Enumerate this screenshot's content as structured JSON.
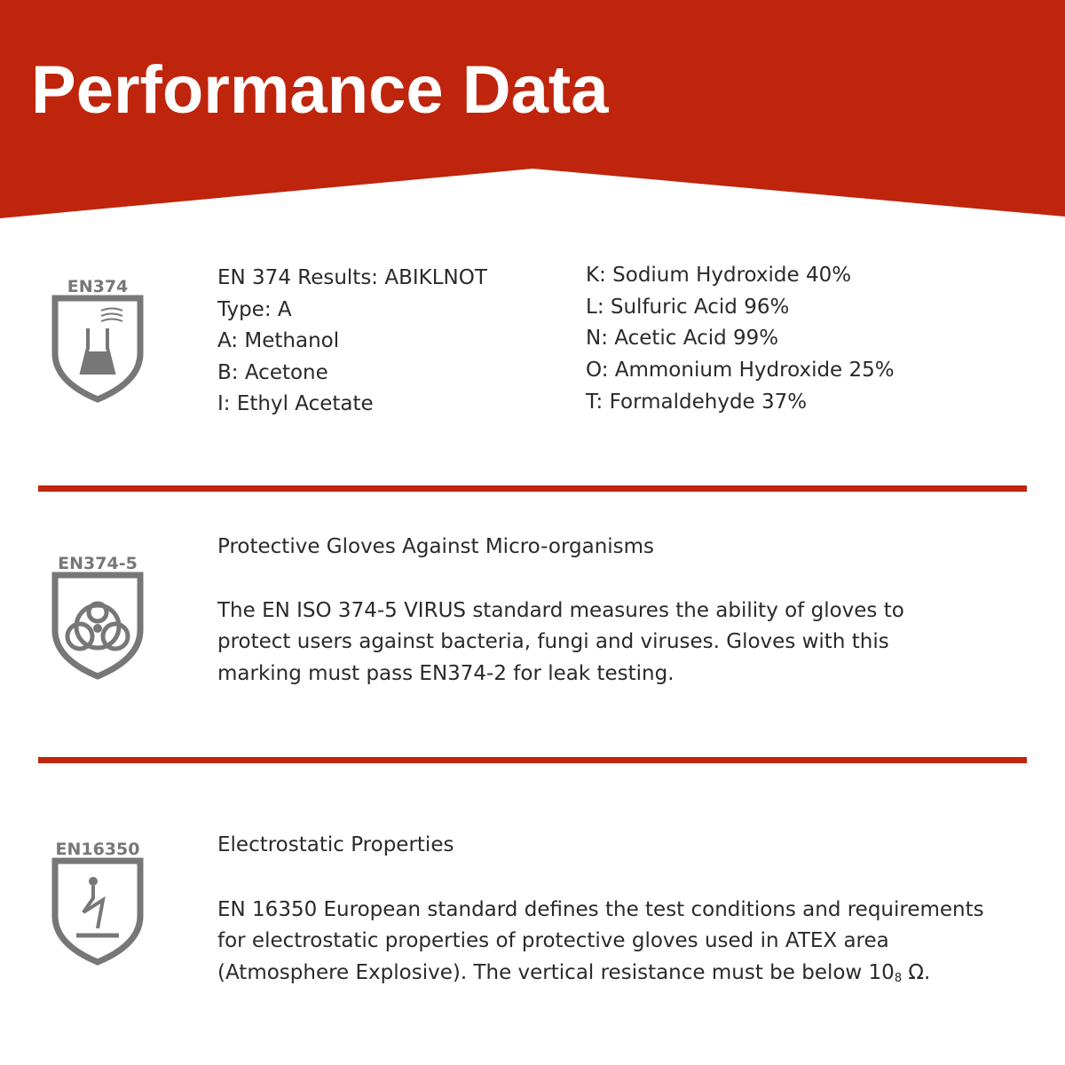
{
  "header": {
    "title": "Performance Data"
  },
  "sections": [
    {
      "badge": "EN374",
      "left_lines": [
        "EN 374 Results: ABIKLNOT",
        "Type: A",
        "A: Methanol",
        "B: Acetone",
        "I: Ethyl Acetate"
      ],
      "right_lines": [
        "K: Sodium Hydroxide 40%",
        "L: Sulfuric Acid 96%",
        "N: Acetic Acid 99%",
        "O: Ammonium Hydroxide 25%",
        "T: Formaldehyde 37%"
      ]
    },
    {
      "badge": "EN374-5",
      "heading": "Protective Gloves Against Micro-organisms",
      "paragraph_lines": [
        "The EN ISO 374-5 VIRUS standard measures the ability of gloves to",
        "protect users against bacteria, fungi and viruses. Gloves with this",
        "marking must pass EN374-2 for leak testing."
      ]
    },
    {
      "badge": "EN16350",
      "heading": "Electrostatic Properties",
      "paragraph_lines": [
        "EN 16350 European standard defines the test conditions and requirements",
        "for electrostatic properties of protective gloves used in ATEX area"
      ],
      "last_line": {
        "text": "(Atmosphere Explosive). The vertical resistance must be below 10",
        "subscript": "8",
        "suffix": " Ω."
      }
    }
  ]
}
